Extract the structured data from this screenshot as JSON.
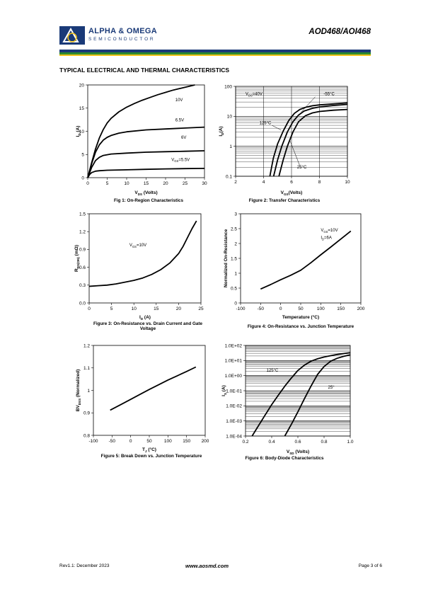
{
  "header": {
    "brand": "ALPHA & OMEGA",
    "brand_sub": "SEMICONDUCTOR",
    "part": "AOD468/AOI468"
  },
  "section_title": "TYPICAL ELECTRICAL AND THERMAL CHARACTERISTICS",
  "footer": {
    "rev": "Rev1.1: December 2023",
    "url": "www.aosmd.com",
    "page": "Page 3 of 6"
  },
  "chart_data": [
    {
      "type": "line",
      "caption": "Fig 1: On-Region Characteristics",
      "xlabel": "VDS (Volts)",
      "ylabel": "ID (A)",
      "xlim": [
        0,
        30
      ],
      "ylim": [
        0,
        20
      ],
      "xticks": [
        0,
        5,
        10,
        15,
        20,
        25,
        30
      ],
      "yticks": [
        0,
        5,
        10,
        15,
        20
      ],
      "series": [
        {
          "name": "10V",
          "x": [
            0,
            1,
            2,
            3,
            4,
            5,
            6,
            8,
            10,
            12,
            14,
            16,
            18,
            20,
            22,
            24,
            26,
            27.5
          ],
          "y": [
            0,
            3.2,
            6.2,
            8.6,
            10.4,
            11.8,
            12.8,
            14.2,
            15.2,
            16,
            16.7,
            17.3,
            17.9,
            18.4,
            18.9,
            19.3,
            19.7,
            20
          ]
        },
        {
          "name": "6.5V",
          "x": [
            0,
            1,
            2,
            3,
            4,
            5,
            6,
            8,
            10,
            15,
            20,
            25,
            30
          ],
          "y": [
            0,
            3,
            5.5,
            7.1,
            8.1,
            8.7,
            9.1,
            9.6,
            9.9,
            10.3,
            10.5,
            10.7,
            10.9
          ]
        },
        {
          "name": "6V",
          "x": [
            0,
            1,
            2,
            3,
            4,
            6,
            10,
            15,
            20,
            25,
            30
          ],
          "y": [
            0,
            2.2,
            3.7,
            4.4,
            4.8,
            5.1,
            5.3,
            5.5,
            5.6,
            5.7,
            5.8
          ]
        },
        {
          "name": "5.5V",
          "x": [
            0,
            0.5,
            1,
            2,
            3,
            5,
            10,
            15,
            20,
            25,
            30
          ],
          "y": [
            0,
            0.7,
            1.1,
            1.4,
            1.5,
            1.6,
            1.7,
            1.8,
            1.9,
            1.95,
            2
          ]
        }
      ],
      "labels": [
        {
          "text": "10V",
          "x": 22.5,
          "y": 16.5
        },
        {
          "text": "6.5V",
          "x": 22.5,
          "y": 12.1
        },
        {
          "text": "6V",
          "x": 24,
          "y": 8.4
        },
        {
          "text": "VGS=5.5V",
          "x": 21.5,
          "y": 3.6
        }
      ]
    },
    {
      "type": "line",
      "caption": "Figure 2: Transfer Characteristics",
      "xlabel": "VGS(Volts)",
      "ylabel": "ID(A)",
      "xlim": [
        2,
        10
      ],
      "ylim": [
        0.1,
        100
      ],
      "yscale": "log",
      "xticks": [
        2,
        4,
        6,
        8,
        10
      ],
      "ytick_labels": [
        "0.1",
        "1",
        "10",
        "100"
      ],
      "series": [
        {
          "name": "125°C",
          "x": [
            4.45,
            4.7,
            5,
            5.4,
            5.8,
            6.2,
            6.6,
            7,
            7.5,
            8,
            9,
            10
          ],
          "y": [
            0.1,
            0.4,
            1.2,
            3.2,
            7.2,
            12.5,
            17,
            20,
            22.5,
            24,
            26,
            28
          ]
        },
        {
          "name": "25°C",
          "x": [
            4.72,
            5,
            5.3,
            5.7,
            6.1,
            6.5,
            6.9,
            7.5,
            8,
            9,
            10
          ],
          "y": [
            0.1,
            0.35,
            1,
            3,
            6.6,
            11,
            15,
            18.5,
            20.5,
            23,
            25
          ]
        },
        {
          "name": "-55°C",
          "x": [
            5.1,
            5.4,
            5.7,
            6.1,
            6.5,
            7,
            7.5,
            8,
            9,
            10
          ],
          "y": [
            0.1,
            0.35,
            1,
            3,
            6.6,
            10.5,
            13,
            14.5,
            16,
            17
          ]
        }
      ],
      "labels": [
        {
          "text": "VDS=40V",
          "x": 2.7,
          "y": 50
        },
        {
          "text": "-55°C",
          "x": 8.3,
          "y": 50
        },
        {
          "text": "125°C",
          "x": 3.7,
          "y": 5.5
        },
        {
          "text": "25°C",
          "x": 6.4,
          "y": 0.18
        }
      ]
    },
    {
      "type": "line",
      "caption": "Figure 3: On-Resistance vs. Drain Current and Gate Voltage",
      "xlabel": "ID (A)",
      "ylabel": "RDS(ON) (mΩ)",
      "xlim": [
        0,
        25
      ],
      "ylim": [
        0,
        1.5
      ],
      "xticks": [
        0,
        5,
        10,
        15,
        20,
        25
      ],
      "ytick_labels": [
        "0.0",
        "0.3",
        "0.6",
        "0.9",
        "1.2",
        "1.5"
      ],
      "series": [
        {
          "name": "VGS=10V",
          "x": [
            0,
            2,
            4,
            6,
            8,
            10,
            12,
            14,
            16,
            18,
            20,
            21,
            22,
            23,
            24
          ],
          "y": [
            0.28,
            0.29,
            0.3,
            0.32,
            0.35,
            0.38,
            0.42,
            0.48,
            0.56,
            0.67,
            0.83,
            0.95,
            1.1,
            1.25,
            1.38
          ]
        }
      ],
      "labels": [
        {
          "text": "VGS=10V",
          "x": 9,
          "y": 0.95
        }
      ]
    },
    {
      "type": "line",
      "caption": "Figure 4: On-Resistance vs. Junction Temperature",
      "xlabel": "Temperature (°C)",
      "ylabel": "Normalized On-Resistance",
      "xlim": [
        -100,
        200
      ],
      "ylim": [
        0,
        3
      ],
      "xticks": [
        -100,
        -50,
        0,
        50,
        100,
        150,
        200
      ],
      "ytick_labels": [
        "0",
        "0.5",
        "1",
        "1.5",
        "2",
        "2.5",
        "3"
      ],
      "series": [
        {
          "name": "VGS=10V ID=6A",
          "x": [
            -50,
            -25,
            0,
            25,
            50,
            75,
            100,
            125,
            150,
            175
          ],
          "y": [
            0.47,
            0.62,
            0.78,
            0.93,
            1.1,
            1.35,
            1.62,
            1.88,
            2.15,
            2.42
          ]
        }
      ],
      "labels": [
        {
          "text": "VGS=10V",
          "x": 100,
          "y": 2.4
        },
        {
          "text": "ID=6A",
          "x": 100,
          "y": 2.15
        }
      ]
    },
    {
      "type": "line",
      "caption": "Figure 5: Break Down vs. Junction Temperature",
      "xlabel": "TJ (°C)",
      "ylabel": "BVDSS (Normalized)",
      "xlim": [
        -100,
        200
      ],
      "ylim": [
        0.8,
        1.2
      ],
      "xticks": [
        -100,
        -50,
        0,
        50,
        100,
        150,
        200
      ],
      "ytick_labels": [
        "0.8",
        "0.9",
        "1",
        "1.1",
        "1.2"
      ],
      "series": [
        {
          "name": "",
          "x": [
            -55,
            -25,
            0,
            25,
            50,
            75,
            100,
            125,
            150,
            175
          ],
          "y": [
            0.912,
            0.938,
            0.96,
            0.982,
            1.004,
            1.025,
            1.046,
            1.065,
            1.084,
            1.104
          ]
        }
      ],
      "labels": []
    },
    {
      "type": "line",
      "caption": "Figure 6: Body-Diode Characteristics",
      "xlabel": "VSD (Volts)",
      "ylabel": "IS (A)",
      "xlim": [
        0.2,
        1.0
      ],
      "ylim": [
        0.0001,
        100
      ],
      "yscale": "log",
      "xticks": [
        0.2,
        0.4,
        0.6,
        0.8,
        1.0
      ],
      "xtick_labels": [
        "0.2",
        "0.4",
        "0.6",
        "0.8",
        "1.0"
      ],
      "ytick_labels": [
        "1.0E-04",
        "1.0E-03",
        "1.0E-02",
        "1.0E-01",
        "1.0E+00",
        "1.0E+01",
        "1.0E+02"
      ],
      "series": [
        {
          "name": "125°C",
          "x": [
            0.25,
            0.3,
            0.35,
            0.4,
            0.45,
            0.5,
            0.55,
            0.6,
            0.65,
            0.7,
            0.75,
            0.8,
            0.85,
            0.9,
            0.95,
            1.0
          ],
          "y": [
            0.0001,
            0.0005,
            0.0025,
            0.012,
            0.05,
            0.2,
            0.7,
            2.2,
            5,
            9,
            13,
            17,
            21,
            25,
            29,
            33
          ]
        },
        {
          "name": "25°C",
          "x": [
            0.5,
            0.55,
            0.6,
            0.65,
            0.7,
            0.75,
            0.8,
            0.85,
            0.9,
            0.95,
            1.0
          ],
          "y": [
            0.0001,
            0.0006,
            0.004,
            0.03,
            0.2,
            1.2,
            4,
            9,
            14,
            19,
            24
          ]
        }
      ],
      "labels": [
        {
          "text": "125°C",
          "x": 0.36,
          "y": 1.8
        },
        {
          "text": "25°",
          "x": 0.83,
          "y": 0.14
        }
      ]
    }
  ]
}
